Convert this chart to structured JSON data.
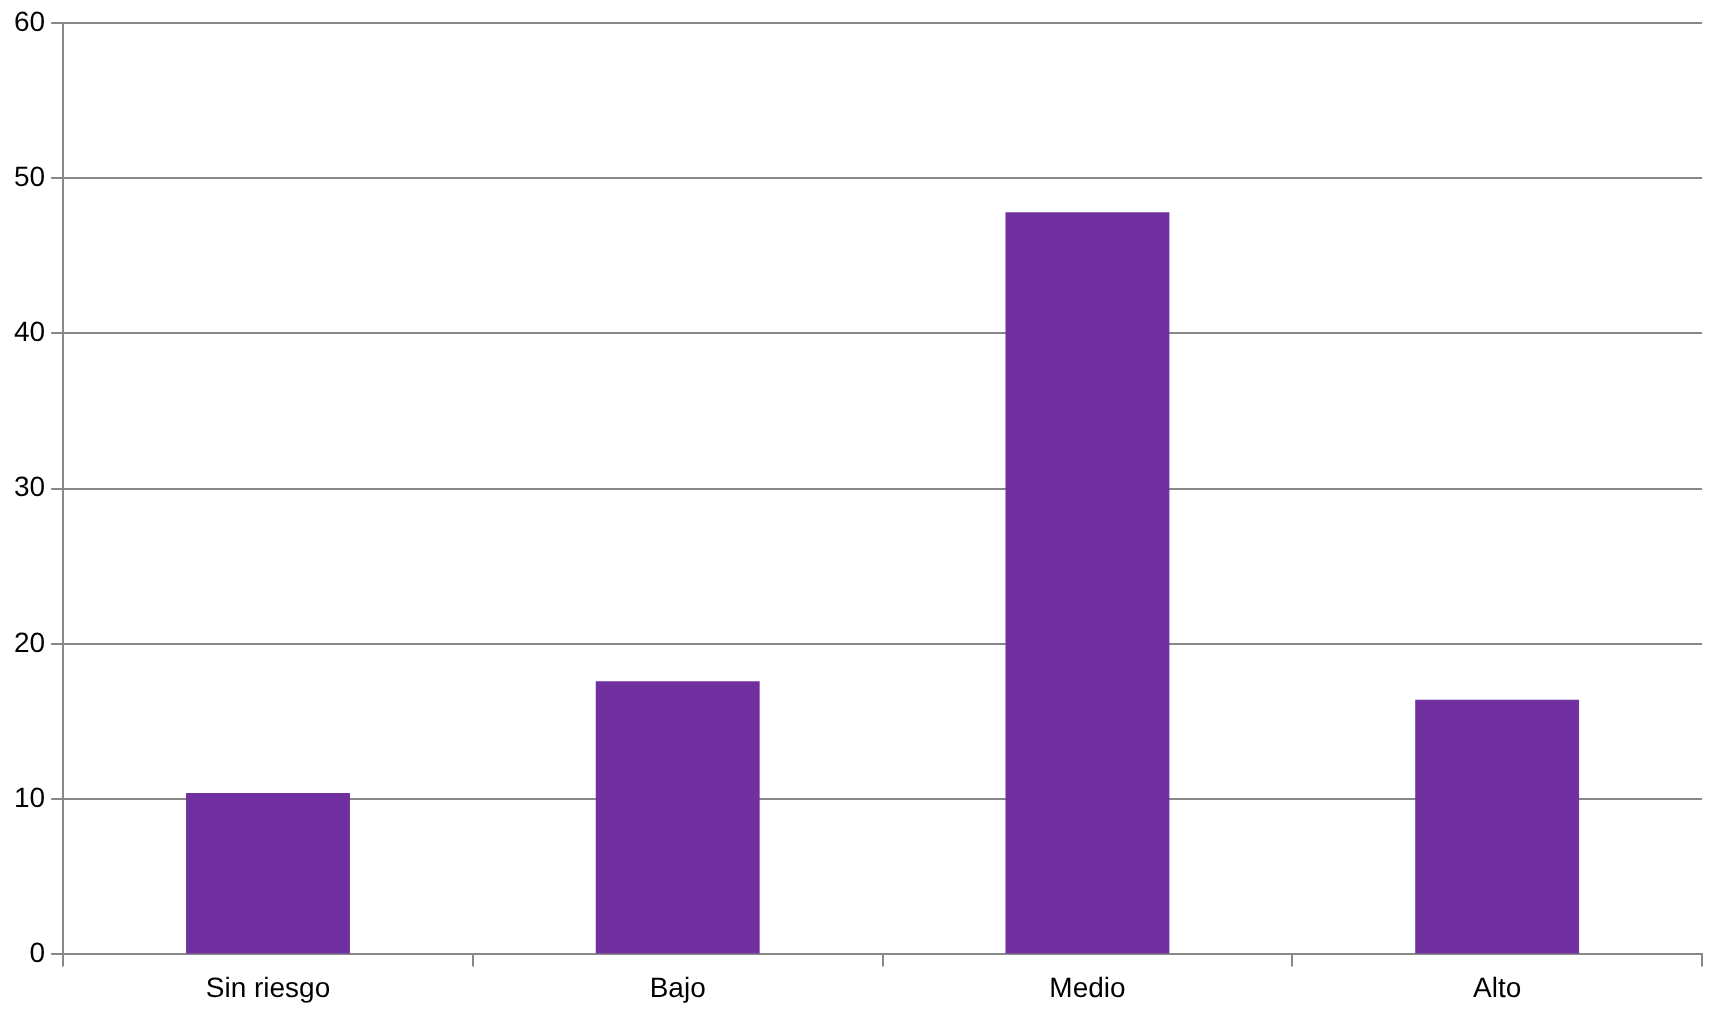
{
  "chart_data": {
    "type": "bar",
    "categories": [
      "Sin riesgo",
      "Bajo",
      "Medio",
      "Alto"
    ],
    "values": [
      10.4,
      17.6,
      47.8,
      16.4
    ],
    "color": "#7030a0",
    "ylim": [
      0,
      60
    ],
    "yticks": [
      0,
      10,
      20,
      30,
      40,
      50,
      60
    ],
    "grid": "y"
  }
}
